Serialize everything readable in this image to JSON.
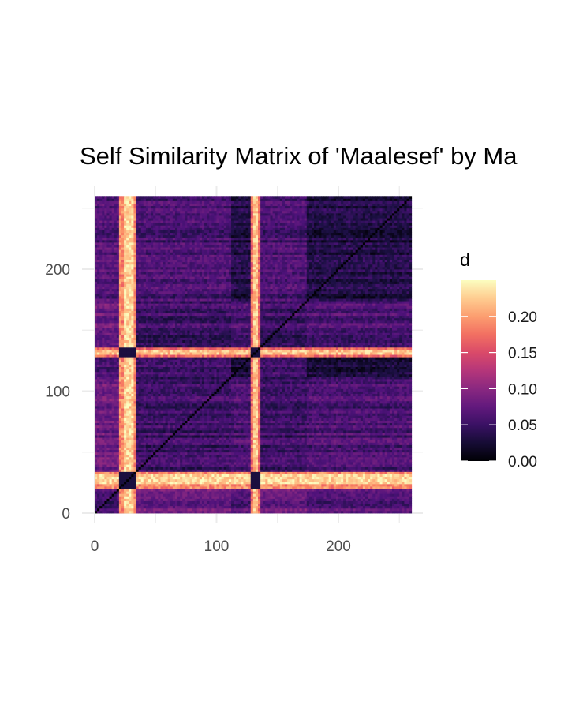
{
  "chart_data": {
    "type": "heatmap",
    "title": "Self Similarity Matrix of 'Maalesef' by Ma",
    "xlabel": "",
    "ylabel": "",
    "xlim": [
      0,
      260
    ],
    "ylim": [
      0,
      260
    ],
    "n": 260,
    "x_ticks": [
      0,
      100,
      200
    ],
    "y_ticks": [
      0,
      100,
      200
    ],
    "grid": true,
    "legend": {
      "title": "d",
      "position": "right",
      "range": [
        0,
        0.25
      ],
      "ticks": [
        "0.00",
        "0.05",
        "0.10",
        "0.15",
        "0.20"
      ],
      "tick_values": [
        0,
        0.05,
        0.1,
        0.15,
        0.2
      ]
    },
    "colormap": "magma",
    "colors": {
      "low": "#000004",
      "mid": "#7b2382",
      "high": "#fcfdbf",
      "grid": "#ebebeb"
    },
    "features": {
      "diagonal_value": 0,
      "base_value_range": [
        0.02,
        0.09
      ],
      "bright_bands": [
        {
          "range": [
            20,
            34
          ],
          "value": 0.19,
          "peak": [
            24,
            31
          ],
          "peak_value": 0.23
        },
        {
          "range": [
            129,
            135
          ],
          "value": 0.17,
          "peak": [
            130,
            133
          ],
          "peak_value": 0.22
        }
      ],
      "blocks": [
        {
          "range": [
            0,
            19
          ],
          "value": 0.07
        },
        {
          "range": [
            20,
            34
          ],
          "value": 0.05
        },
        {
          "range": [
            35,
            111
          ],
          "value": 0.06
        },
        {
          "range": [
            112,
            128
          ],
          "value": 0.03
        },
        {
          "range": [
            129,
            135
          ],
          "value": 0.07
        },
        {
          "range": [
            136,
            173
          ],
          "value": 0.06
        },
        {
          "range": [
            174,
            260
          ],
          "value": 0.03
        }
      ]
    }
  }
}
